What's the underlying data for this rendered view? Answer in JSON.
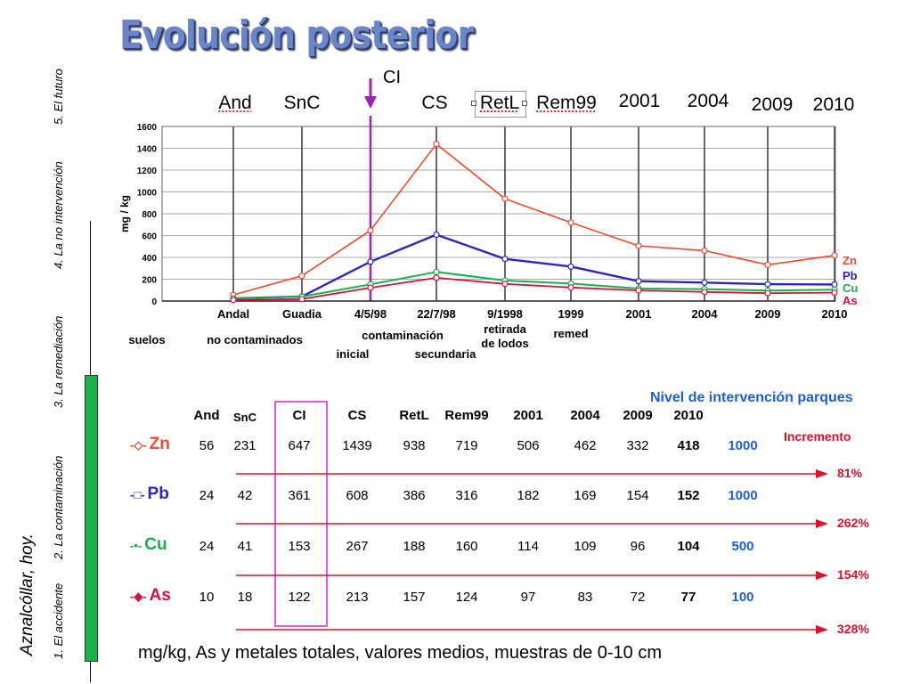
{
  "title": "Evolución posterior",
  "sidebar": {
    "title": "Aznalcóllar, hoy.",
    "nav": [
      "1. El accidente",
      "2. La contaminación",
      "3. La remediación",
      "4. La no intervención",
      "5. El futuro"
    ]
  },
  "phases": [
    {
      "label": "And"
    },
    {
      "label": "SnC"
    },
    {
      "label": "CS"
    },
    {
      "label": "RetL"
    },
    {
      "label": "Rem99"
    },
    {
      "label": "2001"
    },
    {
      "label": "2004"
    },
    {
      "label": "2009"
    },
    {
      "label": "2010"
    }
  ],
  "ci_marker": "CI",
  "colors": {
    "Zn": "#ef4a2e",
    "Pb": "#2e23c4",
    "Cu": "#15b24a",
    "As": "#d2143a",
    "marker": "#a020b0",
    "accent_blue": "#1f5fd6"
  },
  "chart_data": {
    "type": "line",
    "title": "",
    "ylabel": "mg / kg",
    "ylim": [
      0,
      1600
    ],
    "yticks": [
      "0",
      "200",
      "400",
      "600",
      "800",
      "1000",
      "1200",
      "1400",
      "1600"
    ],
    "categories": [
      "Andal",
      "Guadia",
      "4/5/98",
      "22/7/98",
      "9/1998",
      "1999",
      "2001",
      "2004",
      "2009",
      "2010"
    ],
    "series": [
      {
        "name": "Zn",
        "values": [
          56,
          231,
          647,
          1439,
          938,
          719,
          506,
          462,
          332,
          418
        ]
      },
      {
        "name": "Pb",
        "values": [
          24,
          42,
          361,
          608,
          386,
          316,
          182,
          169,
          154,
          152
        ]
      },
      {
        "name": "Cu",
        "values": [
          24,
          41,
          153,
          267,
          188,
          160,
          114,
          109,
          96,
          104
        ]
      },
      {
        "name": "As",
        "values": [
          10,
          18,
          122,
          213,
          157,
          124,
          97,
          83,
          72,
          77
        ]
      }
    ],
    "sublabels": {
      "suelos": "suelos",
      "no_contaminados": "no contaminados",
      "contaminacion": "contaminación",
      "inicial": "inicial",
      "secundaria": "secundaria",
      "retirada": "retirada",
      "de_lodos": "de lodos",
      "remed": "remed"
    }
  },
  "table": {
    "nivel_label": "Nivel de intervención parques",
    "incremento_label": "Incremento",
    "headers": [
      "And",
      "SnC",
      "CI",
      "CS",
      "RetL",
      "Rem99",
      "2001",
      "2004",
      "2009",
      "2010"
    ],
    "rows": [
      {
        "element": "Zn",
        "values": [
          "56",
          "231",
          "647",
          "1439",
          "938",
          "719",
          "506",
          "462",
          "332",
          "418"
        ],
        "nivel": "1000",
        "incremento": "81%"
      },
      {
        "element": "Pb",
        "values": [
          "24",
          "42",
          "361",
          "608",
          "386",
          "316",
          "182",
          "169",
          "154",
          "152"
        ],
        "nivel": "1000",
        "incremento": "262%"
      },
      {
        "element": "Cu",
        "values": [
          "24",
          "41",
          "153",
          "267",
          "188",
          "160",
          "114",
          "109",
          "96",
          "104"
        ],
        "nivel": "500",
        "incremento": "154%"
      },
      {
        "element": "As",
        "values": [
          "10",
          "18",
          "122",
          "213",
          "157",
          "124",
          "97",
          "83",
          "72",
          "77"
        ],
        "nivel": "100",
        "incremento": "328%"
      }
    ]
  },
  "footer": "mg/kg,  As y metales totales, valores medios, muestras de 0-10 cm"
}
